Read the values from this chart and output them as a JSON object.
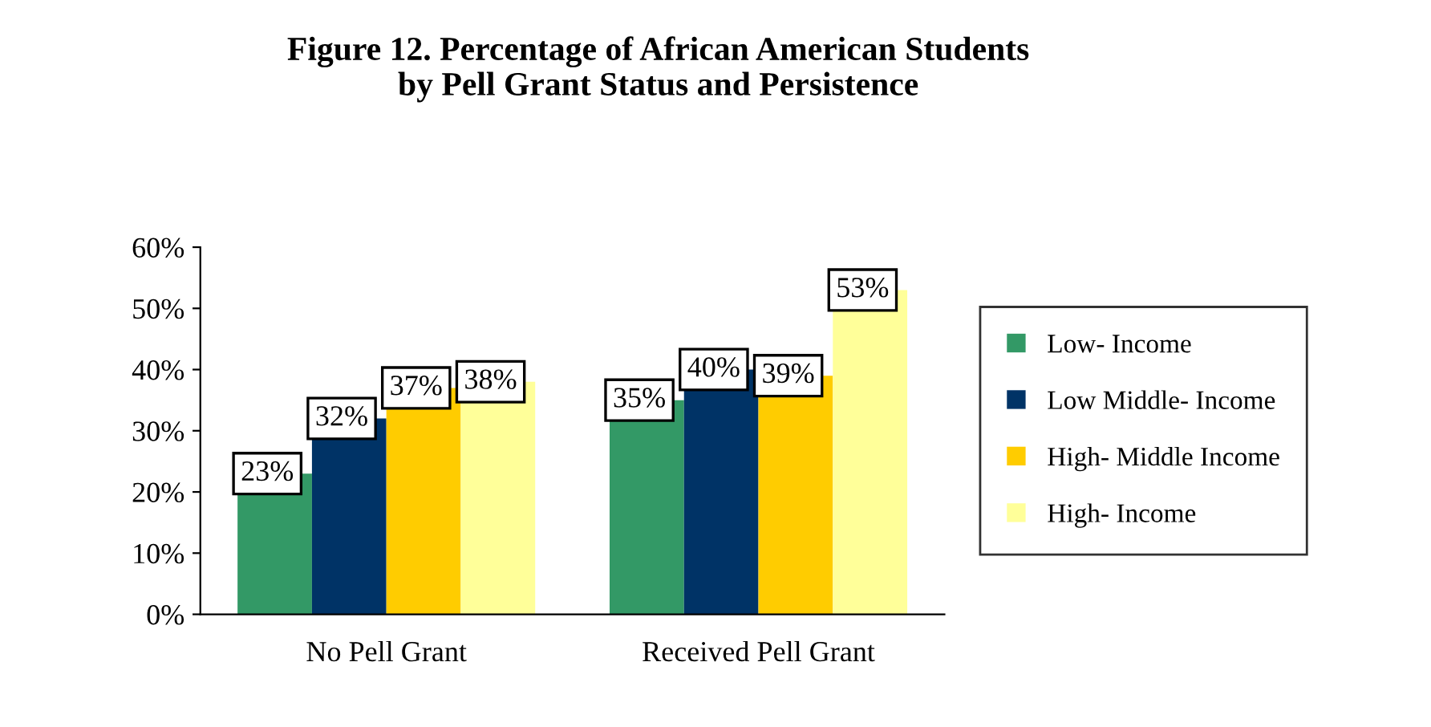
{
  "chart_data": {
    "type": "bar",
    "title": "Figure 12. Percentage of African American Students\nby Pell Grant Status and Persistence",
    "categories": [
      "No Pell Grant",
      "Received Pell Grant"
    ],
    "series": [
      {
        "name": "Low- Income",
        "color": "#339966",
        "values": [
          23,
          35
        ],
        "value_labels": [
          "23%",
          "35%"
        ]
      },
      {
        "name": "Low Middle- Income",
        "color": "#003366",
        "values": [
          32,
          40
        ],
        "value_labels": [
          "32%",
          "40%"
        ]
      },
      {
        "name": "High- Middle Income",
        "color": "#ffcc00",
        "values": [
          37,
          39
        ],
        "value_labels": [
          "37%",
          "39%"
        ]
      },
      {
        "name": "High- Income",
        "color": "#ffff99",
        "values": [
          38,
          53
        ],
        "value_labels": [
          "38%",
          "53%"
        ]
      }
    ],
    "ylim": [
      0,
      60
    ],
    "yticks": [
      {
        "value": 0,
        "label": "0%"
      },
      {
        "value": 10,
        "label": "10%"
      },
      {
        "value": 20,
        "label": "20%"
      },
      {
        "value": 30,
        "label": "30%"
      },
      {
        "value": 40,
        "label": "40%"
      },
      {
        "value": 50,
        "label": "50%"
      },
      {
        "value": 60,
        "label": "60%"
      }
    ],
    "grid": false,
    "legend": "right"
  }
}
